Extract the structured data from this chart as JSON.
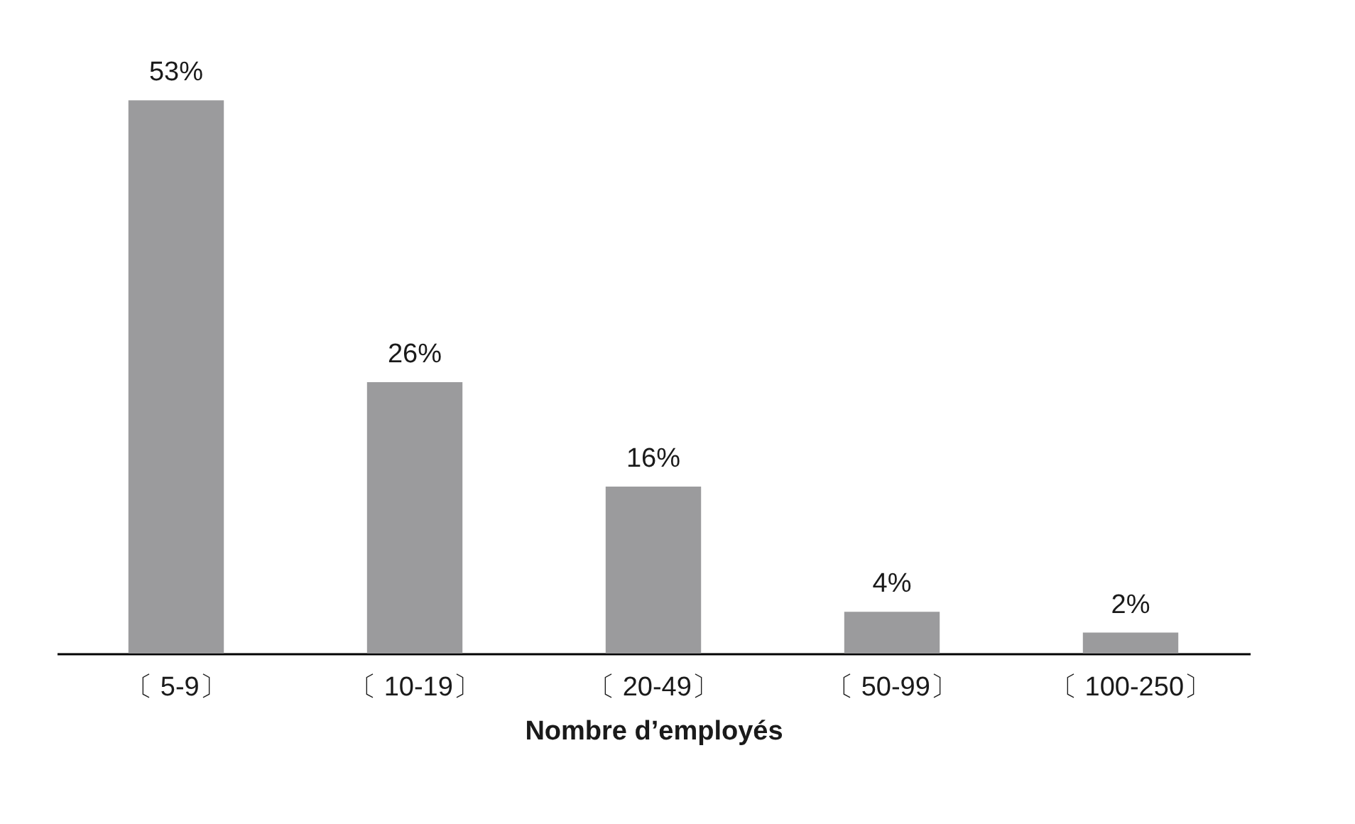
{
  "chart_data": {
    "type": "bar",
    "xlabel": "Nombre d’employés",
    "categories": [
      "〔 5-9〕",
      "〔 10-19〕",
      "〔 20-49〕",
      "〔 50-99〕",
      "〔 100-250〕"
    ],
    "values": [
      53,
      26,
      16,
      4,
      2
    ],
    "value_labels": [
      "53%",
      "26%",
      "16%",
      "4%",
      "2%"
    ],
    "color": "#9b9b9d"
  }
}
